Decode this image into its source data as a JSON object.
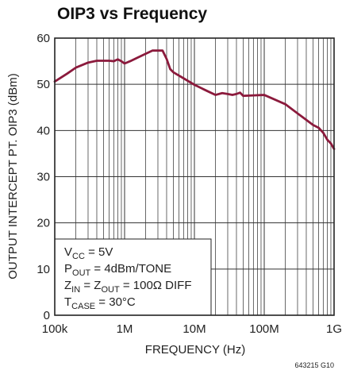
{
  "chart_data": {
    "type": "line",
    "title": "OIP3 vs Frequency",
    "xlabel": "FREQUENCY (Hz)",
    "ylabel": "OUTPUT INTERCEPT PT.  OIP3 (dBm)",
    "xscale": "log",
    "xlim": [
      100000,
      1000000000
    ],
    "ylim": [
      0,
      60
    ],
    "x_ticks": [
      {
        "value": 100000,
        "label": "100k"
      },
      {
        "value": 1000000,
        "label": "1M"
      },
      {
        "value": 10000000,
        "label": "10M"
      },
      {
        "value": 100000000,
        "label": "100M"
      },
      {
        "value": 1000000000,
        "label": "1G"
      }
    ],
    "y_ticks": [
      {
        "value": 0,
        "label": "0"
      },
      {
        "value": 10,
        "label": "10"
      },
      {
        "value": 20,
        "label": "20"
      },
      {
        "value": 30,
        "label": "30"
      },
      {
        "value": 40,
        "label": "40"
      },
      {
        "value": 50,
        "label": "50"
      },
      {
        "value": 60,
        "label": "60"
      }
    ],
    "grid": true,
    "series": [
      {
        "color": "#8b1a3c",
        "x": [
          100000,
          150000,
          200000,
          300000,
          400000,
          500000,
          600000,
          700000,
          800000,
          900000,
          1000000,
          1200000,
          1500000,
          2000000,
          2500000,
          3000000,
          3500000,
          4000000,
          4500000,
          5000000,
          7000000,
          10000000,
          15000000,
          20000000,
          25000000,
          30000000,
          35000000,
          40000000,
          45000000,
          50000000,
          70000000,
          100000000,
          200000000,
          300000000,
          500000000,
          600000000,
          700000000,
          800000000,
          900000000,
          1000000000
        ],
        "y": [
          50.6,
          52.3,
          53.6,
          54.7,
          55.1,
          55.1,
          55.1,
          55.0,
          55.4,
          55.0,
          54.5,
          55.0,
          55.7,
          56.6,
          57.3,
          57.3,
          57.3,
          55.5,
          53.3,
          52.6,
          51.3,
          49.9,
          48.6,
          47.7,
          48.1,
          47.9,
          47.7,
          47.9,
          48.2,
          47.5,
          47.6,
          47.7,
          45.7,
          43.7,
          41.2,
          40.6,
          39.5,
          38.0,
          37.2,
          36.0
        ]
      }
    ],
    "conditions": [
      {
        "main": "V",
        "sub": "CC",
        "rest": " = 5V"
      },
      {
        "main": "P",
        "sub": "OUT",
        "rest": " = 4dBm/TONE"
      },
      {
        "main": "Z",
        "sub": "IN",
        "rest": " = Z",
        "sub2": "OUT",
        "rest2": " = 100Ω DIFF"
      },
      {
        "main": "T",
        "sub": "CASE",
        "rest": " = 30°C"
      }
    ],
    "figure_note": "643215 G10"
  }
}
